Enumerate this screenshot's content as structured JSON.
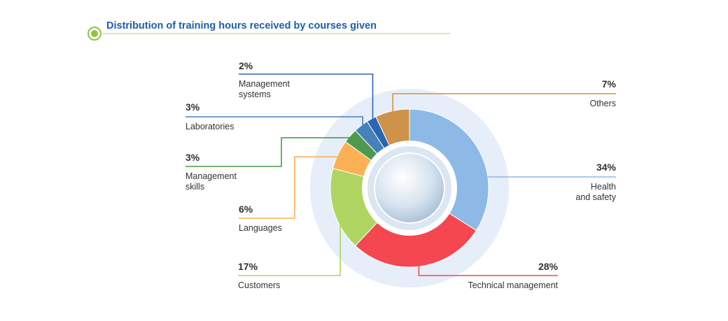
{
  "chart_data": {
    "type": "pie",
    "title": "Distribution of training hours received by courses given",
    "unit": "%",
    "slices": [
      {
        "label": "Health and safety",
        "lines": [
          "Health",
          "and safety"
        ],
        "value": 34,
        "display": "34%",
        "color": "#8db9e6"
      },
      {
        "label": "Technical management",
        "lines": [
          "Technical management"
        ],
        "value": 28,
        "display": "28%",
        "color": "#f5474f"
      },
      {
        "label": "Customers",
        "lines": [
          "Customers"
        ],
        "value": 17,
        "display": "17%",
        "color": "#b0d461"
      },
      {
        "label": "Languages",
        "lines": [
          "Languages"
        ],
        "value": 6,
        "display": "6%",
        "color": "#fbb153"
      },
      {
        "label": "Management skills",
        "lines": [
          "Management",
          "skills"
        ],
        "value": 3,
        "display": "3%",
        "color": "#4d9a4f"
      },
      {
        "label": "Laboratories",
        "lines": [
          "Laboratories"
        ],
        "value": 3,
        "display": "3%",
        "color": "#4682b8"
      },
      {
        "label": "Management systems",
        "lines": [
          "Management",
          "systems"
        ],
        "value": 2,
        "display": "2%",
        "color": "#2a67b2"
      },
      {
        "label": "Others",
        "lines": [
          "Others"
        ],
        "value": 7,
        "display": "7%",
        "color": "#cf9249"
      }
    ],
    "colors": {
      "title": "#1a5fae",
      "title_rule": "#c8e3a0",
      "title_marker": "#8cc63f",
      "halo": "#e6eef9",
      "center_ring": "#dbe6f3"
    }
  }
}
